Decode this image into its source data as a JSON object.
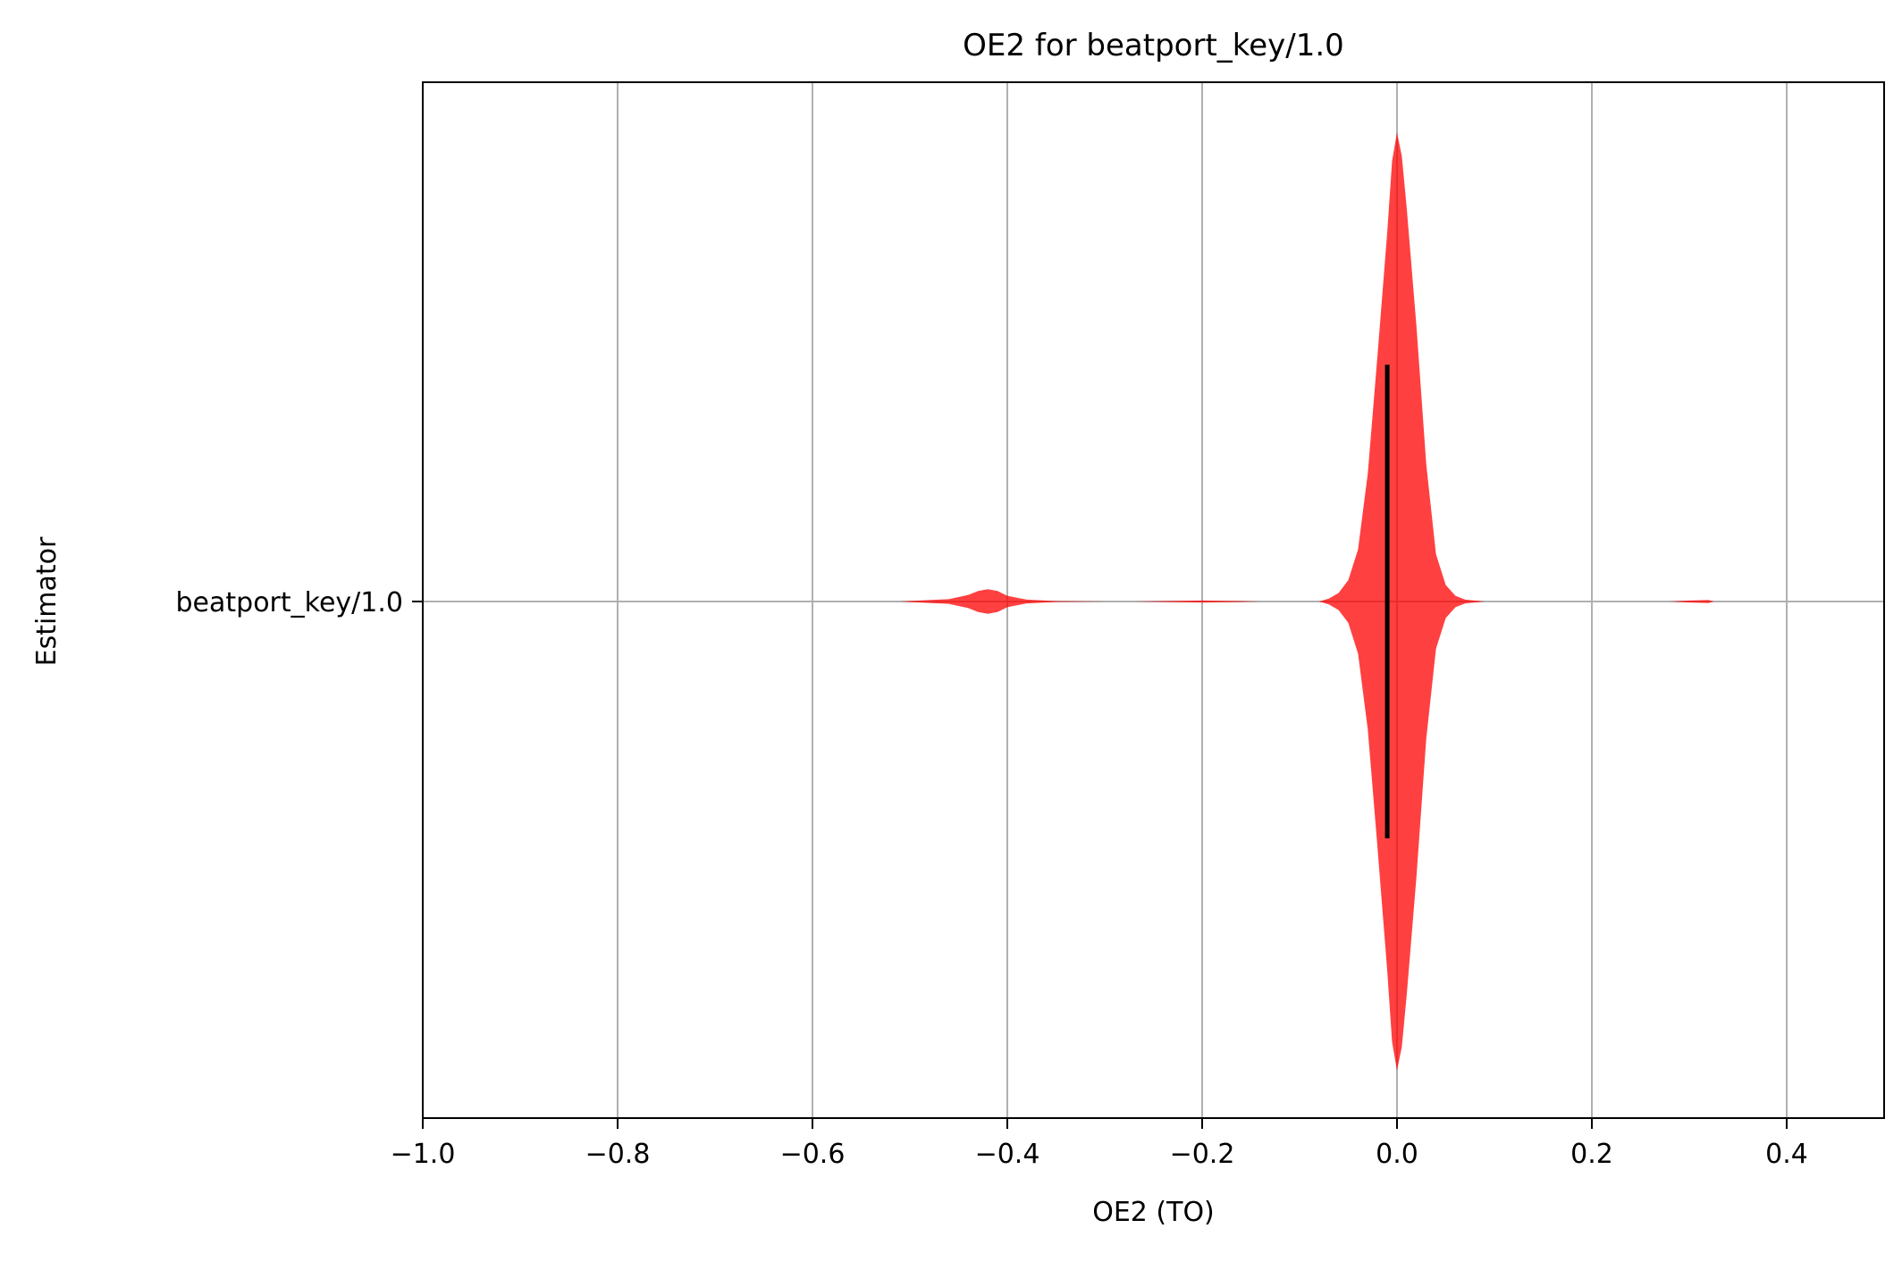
{
  "chart_data": {
    "type": "violin",
    "orientation": "horizontal",
    "title": "OE2 for beatport_key/1.0",
    "xlabel": "OE2 (TO)",
    "ylabel": "Estimator",
    "xlim": [
      -1.0,
      0.5
    ],
    "xticks": [
      -1.0,
      -0.8,
      -0.6,
      -0.4,
      -0.2,
      0.0,
      0.2,
      0.4
    ],
    "xtick_labels": [
      "−1.0",
      "−0.8",
      "−0.6",
      "−0.4",
      "−0.2",
      "0.0",
      "0.2",
      "0.4"
    ],
    "categories": [
      "beatport_key/1.0"
    ],
    "grid": true,
    "colors": {
      "violin": "#ff0000",
      "violin_alpha": 0.75,
      "range_line": "#000000",
      "grid": "#b0b0b0"
    },
    "violins": [
      {
        "name": "beatport_key/1.0",
        "range_line": [
          -0.01,
          -0.01
        ],
        "range_line_extent": 0.5,
        "density": [
          [
            -0.51,
            0.0
          ],
          [
            -0.49,
            0.002
          ],
          [
            -0.46,
            0.005
          ],
          [
            -0.44,
            0.014
          ],
          [
            -0.43,
            0.022
          ],
          [
            -0.42,
            0.026
          ],
          [
            -0.41,
            0.022
          ],
          [
            -0.4,
            0.012
          ],
          [
            -0.38,
            0.004
          ],
          [
            -0.35,
            0.001
          ],
          [
            -0.3,
            0.0
          ],
          [
            -0.27,
            0.0
          ],
          [
            -0.24,
            0.001
          ],
          [
            -0.2,
            0.002
          ],
          [
            -0.16,
            0.001
          ],
          [
            -0.14,
            0.0
          ],
          [
            -0.08,
            0.0
          ],
          [
            -0.07,
            0.006
          ],
          [
            -0.06,
            0.018
          ],
          [
            -0.05,
            0.045
          ],
          [
            -0.04,
            0.11
          ],
          [
            -0.03,
            0.27
          ],
          [
            -0.02,
            0.52
          ],
          [
            -0.01,
            0.78
          ],
          [
            -0.005,
            0.93
          ],
          [
            0.0,
            0.99
          ],
          [
            0.005,
            0.94
          ],
          [
            0.01,
            0.83
          ],
          [
            0.02,
            0.58
          ],
          [
            0.03,
            0.29
          ],
          [
            0.04,
            0.1
          ],
          [
            0.05,
            0.035
          ],
          [
            0.06,
            0.012
          ],
          [
            0.07,
            0.004
          ],
          [
            0.09,
            0.0
          ],
          [
            0.28,
            0.0
          ],
          [
            0.3,
            0.002
          ],
          [
            0.32,
            0.003
          ],
          [
            0.325,
            0.0
          ]
        ]
      }
    ]
  }
}
